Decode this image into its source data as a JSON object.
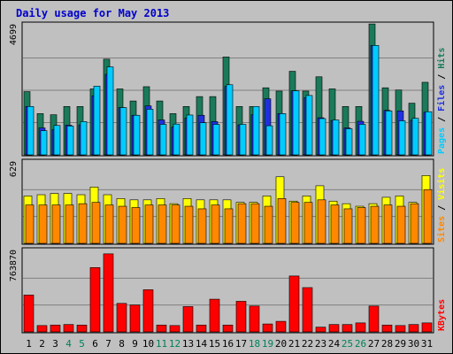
{
  "chart_data": {
    "type": "bar",
    "title": "Daily usage for May 2013",
    "x": [
      "1",
      "2",
      "3",
      "4",
      "5",
      "6",
      "7",
      "8",
      "9",
      "10",
      "11",
      "12",
      "13",
      "14",
      "15",
      "16",
      "17",
      "18",
      "19",
      "20",
      "21",
      "22",
      "23",
      "24",
      "25",
      "26",
      "27",
      "28",
      "29",
      "30",
      "31"
    ],
    "weekend_days": [
      "4",
      "5",
      "11",
      "12",
      "18",
      "19",
      "25",
      "26"
    ],
    "panels": [
      {
        "name": "hits-files-pages",
        "ymax_label": "4699",
        "ymax": 4699,
        "legend": [
          "Pages",
          "Files",
          "Hits"
        ],
        "series": [
          {
            "name": "Hits",
            "color": "#1a7a5a",
            "values": [
              2300,
              1500,
              1460,
              1760,
              1760,
              2400,
              3480,
              2400,
              1960,
              2480,
              1960,
              1500,
              1760,
              2120,
              2120,
              3560,
              1760,
              1760,
              2440,
              2320,
              3040,
              2320,
              2840,
              2400,
              1760,
              1760,
              4760,
              2440,
              2360,
              1880,
              2640
            ]
          },
          {
            "name": "Files",
            "color": "#2030e0",
            "values": [
              1760,
              980,
              920,
              1080,
              1090,
              2150,
              2930,
              1720,
              1440,
              1780,
              1270,
              1010,
              1340,
              1440,
              1210,
              2490,
              1090,
              1460,
              2040,
              1500,
              2330,
              2080,
              1350,
              1250,
              980,
              1220,
              3980,
              1620,
              1600,
              1260,
              1550
            ]
          },
          {
            "name": "Pages",
            "color": "#00ccff",
            "values": [
              1760,
              880,
              1070,
              1050,
              1210,
              2500,
              3200,
              1720,
              1440,
              1660,
              1110,
              1120,
              1450,
              1170,
              1110,
              2550,
              1110,
              1760,
              1060,
              1500,
              2330,
              2160,
              1320,
              1270,
              950,
              1110,
              3980,
              1600,
              1240,
              1330,
              1570
            ]
          }
        ]
      },
      {
        "name": "visits-sites",
        "ymax_label": "629",
        "ymax": 629,
        "legend": [
          "Sites",
          "Visits"
        ],
        "series": [
          {
            "name": "Visits",
            "color": "#ffff00",
            "values": [
              370,
              380,
              390,
              390,
              380,
              440,
              380,
              350,
              340,
              340,
              350,
              310,
              350,
              340,
              340,
              340,
              320,
              320,
              370,
              520,
              330,
              370,
              450,
              330,
              310,
              290,
              310,
              360,
              370,
              320,
              530
            ]
          },
          {
            "name": "Sites",
            "color": "#ff8800",
            "values": [
              300,
              300,
              300,
              300,
              310,
              320,
              300,
              290,
              280,
              300,
              300,
              300,
              290,
              270,
              300,
              270,
              310,
              310,
              290,
              350,
              320,
              320,
              340,
              300,
              270,
              280,
              290,
              300,
              290,
              310,
              420
            ]
          }
        ]
      },
      {
        "name": "kbytes",
        "ymax_label": "763870",
        "ymax": 763870,
        "legend": [
          "KBytes"
        ],
        "series": [
          {
            "name": "KBytes",
            "color": "#ff0000",
            "values": [
              350000,
              60000,
              65000,
              70000,
              65000,
              610000,
              740000,
              270000,
              255000,
              400000,
              65000,
              60000,
              240000,
              65000,
              310000,
              65000,
              290000,
              245000,
              75000,
              100000,
              530000,
              420000,
              45000,
              70000,
              70000,
              85000,
              245000,
              65000,
              60000,
              70000,
              85000
            ]
          }
        ]
      }
    ]
  }
}
